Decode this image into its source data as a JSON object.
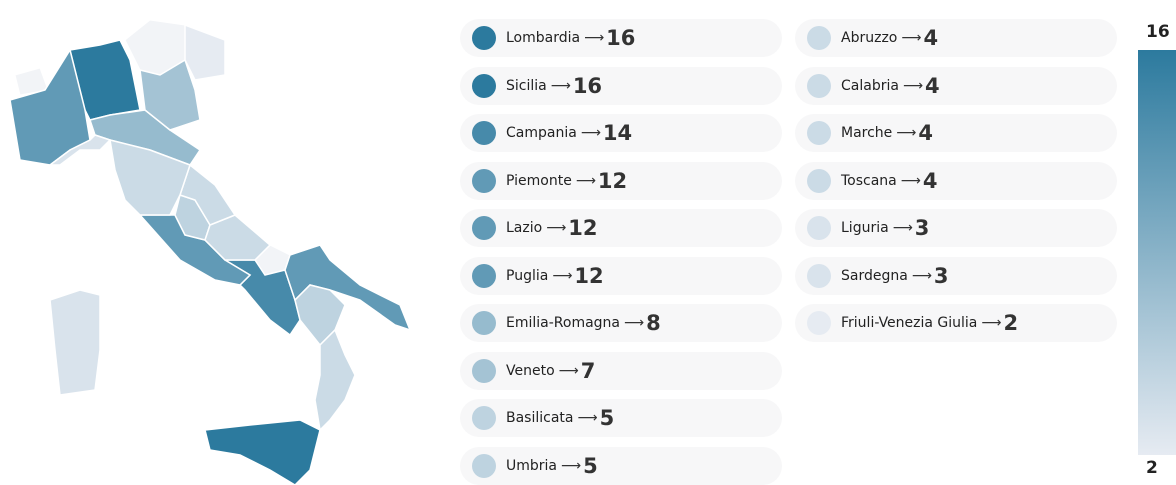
{
  "separator": "⟶",
  "scale": {
    "max": 16,
    "min": 2,
    "colors": [
      "#2c7a9e",
      "#e6ebf2"
    ]
  },
  "regions": [
    {
      "name": "Lombardia",
      "value": 16
    },
    {
      "name": "Sicilia",
      "value": 16
    },
    {
      "name": "Campania",
      "value": 14
    },
    {
      "name": "Piemonte",
      "value": 12
    },
    {
      "name": "Lazio",
      "value": 12
    },
    {
      "name": "Puglia",
      "value": 12
    },
    {
      "name": "Emilia-Romagna",
      "value": 8
    },
    {
      "name": "Veneto",
      "value": 7
    },
    {
      "name": "Basilicata",
      "value": 5
    },
    {
      "name": "Umbria",
      "value": 5
    },
    {
      "name": "Abruzzo",
      "value": 4
    },
    {
      "name": "Calabria",
      "value": 4
    },
    {
      "name": "Marche",
      "value": 4
    },
    {
      "name": "Toscana",
      "value": 4
    },
    {
      "name": "Liguria",
      "value": 3
    },
    {
      "name": "Sardegna",
      "value": 3
    },
    {
      "name": "Friuli-Venezia Giulia",
      "value": 2
    }
  ]
}
